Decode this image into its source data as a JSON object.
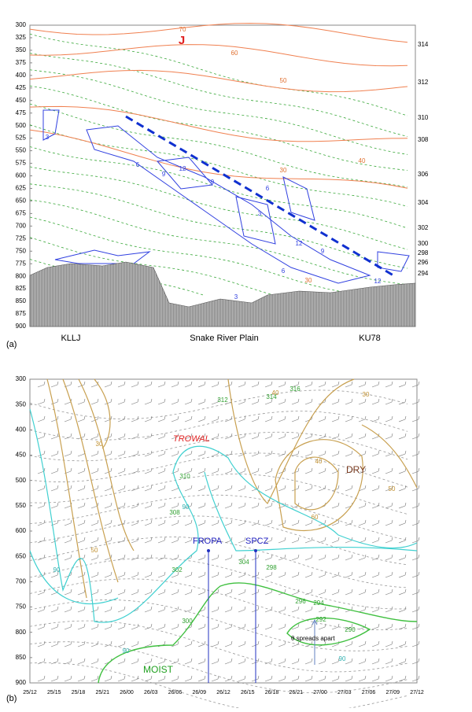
{
  "panel_a": {
    "label": "(a)",
    "yticks": [
      300,
      325,
      350,
      375,
      400,
      425,
      450,
      475,
      500,
      525,
      550,
      575,
      600,
      625,
      650,
      675,
      700,
      725,
      750,
      775,
      800,
      825,
      850,
      875,
      900
    ],
    "ylim": [
      300,
      900
    ],
    "theta_labels": [
      314,
      312,
      310,
      308,
      306,
      304,
      302,
      300,
      298,
      296,
      294
    ],
    "stations": [
      "KLLJ",
      "Snake River Plain",
      "KU78"
    ],
    "jet_label": "J",
    "isotach_labels": [
      "70",
      "60",
      "50",
      "40",
      "30",
      "30"
    ],
    "contour_labels": [
      "3",
      "6",
      "9",
      "12",
      "9",
      "6",
      "3",
      "12",
      "9",
      "6",
      "3",
      "12"
    ]
  },
  "panel_b": {
    "label": "(b)",
    "yticks": [
      300,
      350,
      400,
      450,
      500,
      550,
      600,
      650,
      700,
      750,
      800,
      850,
      900
    ],
    "ylim": [
      300,
      900
    ],
    "xticks": [
      "25/12",
      "25/15",
      "25/18",
      "25/21",
      "26/00",
      "26/03",
      "26/06",
      "26/09",
      "26/12",
      "26/15",
      "26/18",
      "26/21",
      "27/00",
      "27/03",
      "27/06",
      "27/09",
      "27/12"
    ],
    "annotations": [
      "TROWAL",
      "DRY",
      "FROPA",
      "SPCZ",
      "θ spreads apart",
      "MOIST"
    ],
    "theta_labels": [
      "316",
      "314",
      "312",
      "310",
      "308",
      "304",
      "302",
      "300",
      "298",
      "296",
      "294",
      "292",
      "290"
    ],
    "speed_labels": [
      "30",
      "40",
      "50",
      "60",
      "40",
      "50",
      "30"
    ],
    "rh_labels": [
      "90",
      "90",
      "90",
      "90"
    ]
  }
}
